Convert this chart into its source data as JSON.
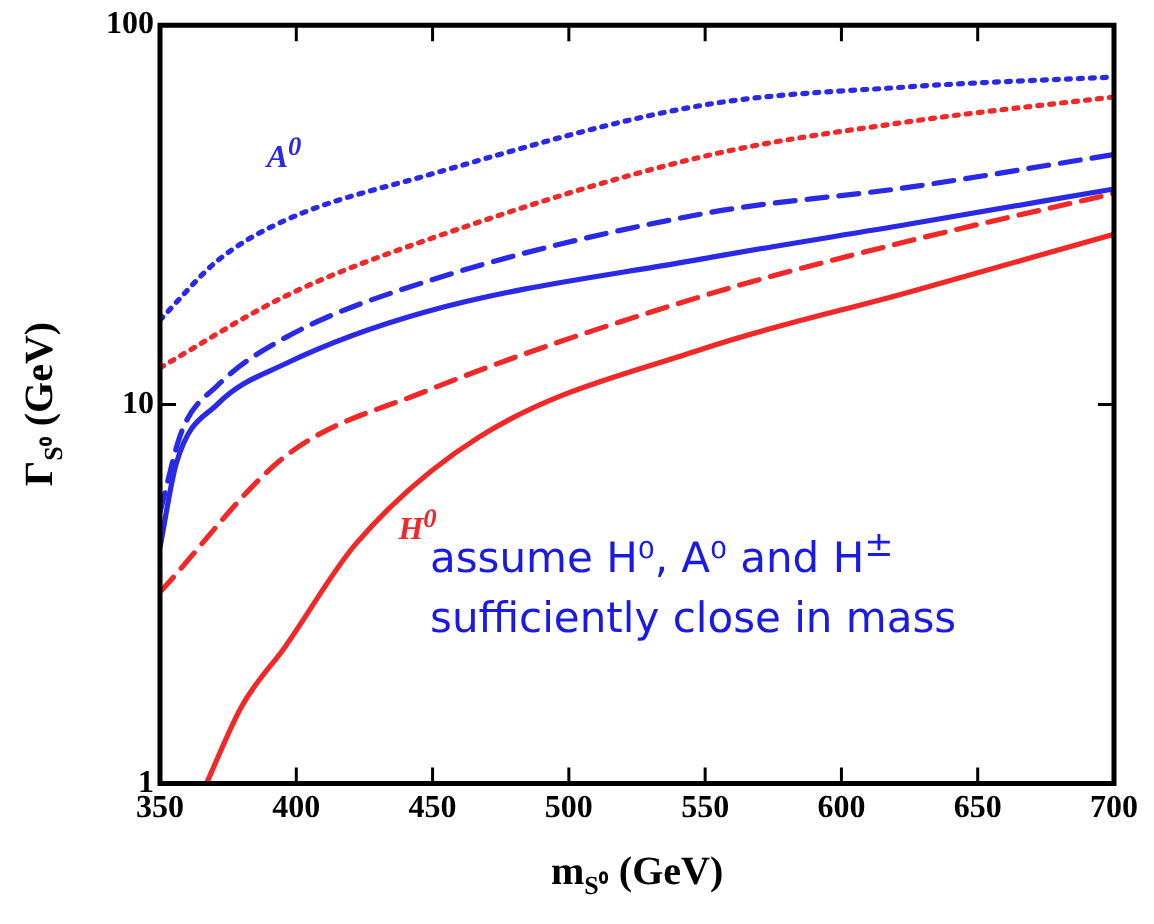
{
  "chart_data": {
    "type": "line",
    "xlabel": "m$_{S⁰}$ (GeV)",
    "ylabel": "Γ$_{S⁰}$ (GeV)",
    "log": "y",
    "grid": false,
    "legend": false,
    "marker": "none",
    "xlim": [
      350,
      700
    ],
    "xticks": [
      350,
      400,
      450,
      500,
      550,
      600,
      650,
      700
    ],
    "ylim": [
      1,
      100
    ],
    "yticks": [
      1,
      10,
      100
    ],
    "series": [
      {
        "color": "#2a2ae6",
        "line_style": "dotted",
        "x": [
          350,
          371,
          396,
          447,
          549,
          625,
          700
        ],
        "values": [
          16.7,
          23.9,
          30.6,
          40,
          61.5,
          68.8,
          73
        ]
      },
      {
        "color": "#f02828",
        "line_style": "dotted",
        "x": [
          350,
          396,
          447,
          549,
          625,
          700
        ],
        "values": [
          12.5,
          19.3,
          27,
          45,
          55.7,
          64.7
        ]
      },
      {
        "color": "#2a2ae6",
        "line_style": "dashed",
        "x": [
          350,
          358,
          371,
          396,
          447,
          549,
          625,
          700
        ],
        "values": [
          5.2,
          8.5,
          11.2,
          15,
          21,
          31.8,
          37.4,
          45.6
        ]
      },
      {
        "color": "#2a2ae6",
        "line_style": "solid",
        "x": [
          350,
          356,
          371,
          396,
          447,
          549,
          625,
          700
        ],
        "values": [
          4.2,
          7,
          10,
          12.8,
          17.5,
          24.2,
          29.9,
          37
        ]
      },
      {
        "color": "#f02828",
        "line_style": "dashed",
        "x": [
          350,
          396,
          447,
          549,
          625,
          700
        ],
        "values": [
          3.2,
          7.3,
          10.8,
          19.3,
          27,
          36
        ]
      },
      {
        "color": "#f02828",
        "line_style": "solid",
        "x": [
          367,
          380,
          396,
          422,
          467,
          549,
          625,
          700
        ],
        "values": [
          1,
          1.6,
          2.3,
          4.3,
          8.2,
          14,
          19.8,
          28.1
        ]
      }
    ],
    "annotations": [
      "A$^{0}$",
      "H$^{0}$",
      "assume H⁰, A⁰ and H$^{±}$ sufficiently close in mass"
    ]
  }
}
